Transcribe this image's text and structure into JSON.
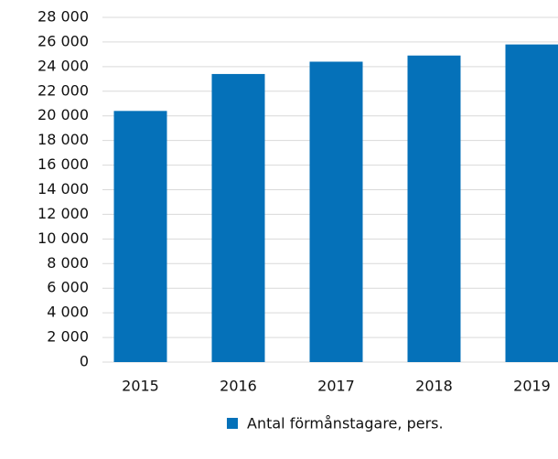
{
  "chart_data": {
    "type": "bar",
    "categories": [
      "2015",
      "2016",
      "2017",
      "2018",
      "2019"
    ],
    "series": [
      {
        "name": "Antal förmånstagare, pers.",
        "color": "#0571b9",
        "values": [
          20400,
          23400,
          24400,
          24900,
          25800
        ]
      }
    ],
    "ylim": [
      0,
      28000
    ],
    "yticks": [
      0,
      {
        "value": 2000,
        "label": "2 000"
      },
      {
        "value": 4000,
        "label": "4 000"
      },
      {
        "value": 6000,
        "label": "6 000"
      },
      {
        "value": 8000,
        "label": "8 000"
      },
      {
        "value": 10000,
        "label": "10 000"
      },
      {
        "value": 12000,
        "label": "12 000"
      },
      {
        "value": 14000,
        "label": "14 000"
      },
      {
        "value": 16000,
        "label": "16 000"
      },
      {
        "value": 18000,
        "label": "18 000"
      },
      {
        "value": 20000,
        "label": "20 000"
      },
      {
        "value": 22000,
        "label": "22 000"
      },
      {
        "value": 24000,
        "label": "24 000"
      },
      {
        "value": 26000,
        "label": "26 000"
      },
      {
        "value": 28000,
        "label": "28 000"
      }
    ],
    "grid": true,
    "legend": "bottom"
  }
}
